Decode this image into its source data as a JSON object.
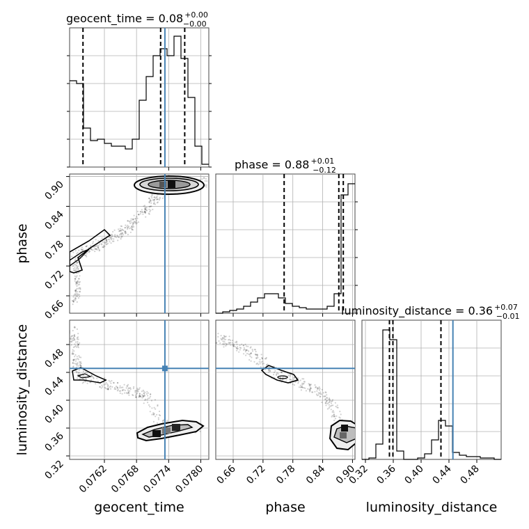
{
  "chart_data": {
    "type": "corner",
    "parameters": [
      "geocent_time",
      "phase",
      "luminosity_distance"
    ],
    "axes": {
      "geocent_time": {
        "range": [
          0.07555,
          0.07815
        ],
        "ticks": [
          0.0762,
          0.0768,
          0.0774,
          0.078
        ],
        "tick_labels": [
          "0.0762",
          "0.0768",
          "0.0774",
          "0.0780"
        ],
        "label": "geocent_time"
      },
      "phase": {
        "range": [
          0.625,
          0.905
        ],
        "ticks": [
          0.66,
          0.72,
          0.78,
          0.84,
          0.9
        ],
        "tick_labels": [
          "0.66",
          "0.72",
          "0.78",
          "0.84",
          "0.90"
        ],
        "label": "phase"
      },
      "luminosity_distance": {
        "range": [
          0.315,
          0.515
        ],
        "ticks": [
          0.32,
          0.36,
          0.4,
          0.44,
          0.48
        ],
        "tick_labels": [
          "0.32",
          "0.36",
          "0.40",
          "0.44",
          "0.48"
        ],
        "label": "luminosity_distance"
      }
    },
    "truths": {
      "geocent_time": 0.07733,
      "phase": null,
      "luminosity_distance": 0.4457
    },
    "truth_color": "#4682b4",
    "marginals": [
      {
        "param": "geocent_time",
        "title": "geocent_time = 0.08",
        "sup": "+0.00",
        "sub": "−0.00",
        "quantiles": [
          0.0758,
          0.07725,
          0.0777
        ],
        "hist_edges": [
          0.07555,
          0.07568,
          0.07581,
          0.07594,
          0.07607,
          0.0762,
          0.07633,
          0.07646,
          0.07659,
          0.07672,
          0.07685,
          0.07698,
          0.07711,
          0.07724,
          0.07737,
          0.0775,
          0.07763,
          0.07776,
          0.07789,
          0.07802,
          0.07815
        ],
        "hist_counts": [
          0.62,
          0.6,
          0.28,
          0.19,
          0.2,
          0.17,
          0.15,
          0.15,
          0.13,
          0.2,
          0.48,
          0.65,
          0.8,
          0.85,
          0.8,
          0.94,
          0.78,
          0.5,
          0.15,
          0.02
        ]
      },
      {
        "param": "phase",
        "title": "phase = 0.88",
        "sup": "+0.01",
        "sub": "−0.12",
        "quantiles": [
          0.7625,
          0.8725,
          0.8815
        ],
        "hist_edges": [
          0.625,
          0.639,
          0.653,
          0.667,
          0.681,
          0.695,
          0.709,
          0.723,
          0.737,
          0.751,
          0.765,
          0.779,
          0.793,
          0.807,
          0.821,
          0.835,
          0.849,
          0.863,
          0.877,
          0.891,
          0.905
        ],
        "hist_counts": [
          0.0,
          0.01,
          0.02,
          0.03,
          0.05,
          0.08,
          0.11,
          0.14,
          0.14,
          0.11,
          0.07,
          0.05,
          0.04,
          0.03,
          0.03,
          0.03,
          0.05,
          0.14,
          0.85,
          0.93
        ]
      },
      {
        "param": "luminosity_distance",
        "title": "luminosity_distance = 0.36",
        "sup": "+0.07",
        "sub": "−0.01",
        "quantiles": [
          0.3545,
          0.3595,
          0.4285
        ],
        "hist_edges": [
          0.315,
          0.325,
          0.335,
          0.345,
          0.355,
          0.365,
          0.375,
          0.385,
          0.395,
          0.405,
          0.415,
          0.425,
          0.435,
          0.445,
          0.455,
          0.465,
          0.475,
          0.485,
          0.495,
          0.505,
          0.515
        ],
        "hist_counts": [
          0.0,
          0.01,
          0.11,
          0.93,
          0.86,
          0.06,
          0.0,
          0.0,
          0.01,
          0.04,
          0.14,
          0.28,
          0.24,
          0.05,
          0.03,
          0.02,
          0.02,
          0.01,
          0.01,
          0.0
        ]
      }
    ],
    "joint": [
      {
        "x": "geocent_time",
        "y": "phase",
        "density_path": [
          [
            0.07565,
            0.74
          ],
          [
            0.0759,
            0.75
          ],
          [
            0.0761,
            0.765
          ],
          [
            0.0763,
            0.775
          ],
          [
            0.0765,
            0.785
          ],
          [
            0.0767,
            0.8
          ],
          [
            0.0769,
            0.825
          ],
          [
            0.0771,
            0.85
          ],
          [
            0.0773,
            0.873
          ],
          [
            0.0775,
            0.886
          ],
          [
            0.0778,
            0.889
          ],
          [
            0.0781,
            0.887
          ]
        ],
        "tail_path": [
          [
            0.07565,
            0.73
          ],
          [
            0.0757,
            0.7
          ],
          [
            0.0757,
            0.67
          ],
          [
            0.07565,
            0.645
          ]
        ],
        "peak": [
          0.0775,
          0.887
        ]
      },
      {
        "x": "geocent_time",
        "y": "luminosity_distance",
        "density_path": [
          [
            0.0756,
            0.5
          ],
          [
            0.07565,
            0.475
          ],
          [
            0.0757,
            0.45
          ],
          [
            0.0758,
            0.432
          ],
          [
            0.0762,
            0.423
          ],
          [
            0.0765,
            0.418
          ],
          [
            0.0768,
            0.412
          ],
          [
            0.077,
            0.405
          ],
          [
            0.0772,
            0.375
          ],
          [
            0.0774,
            0.355
          ],
          [
            0.0777,
            0.358
          ],
          [
            0.078,
            0.362
          ]
        ],
        "peak": [
          0.07755,
          0.359
        ]
      },
      {
        "x": "phase",
        "y": "luminosity_distance",
        "density_path": [
          [
            0.63,
            0.49
          ],
          [
            0.66,
            0.48
          ],
          [
            0.69,
            0.47
          ],
          [
            0.72,
            0.455
          ],
          [
            0.75,
            0.437
          ],
          [
            0.78,
            0.428
          ],
          [
            0.81,
            0.42
          ],
          [
            0.84,
            0.41
          ],
          [
            0.86,
            0.39
          ],
          [
            0.88,
            0.355
          ],
          [
            0.89,
            0.36
          ],
          [
            0.9,
            0.358
          ]
        ],
        "peak": [
          0.892,
          0.358
        ]
      }
    ]
  }
}
